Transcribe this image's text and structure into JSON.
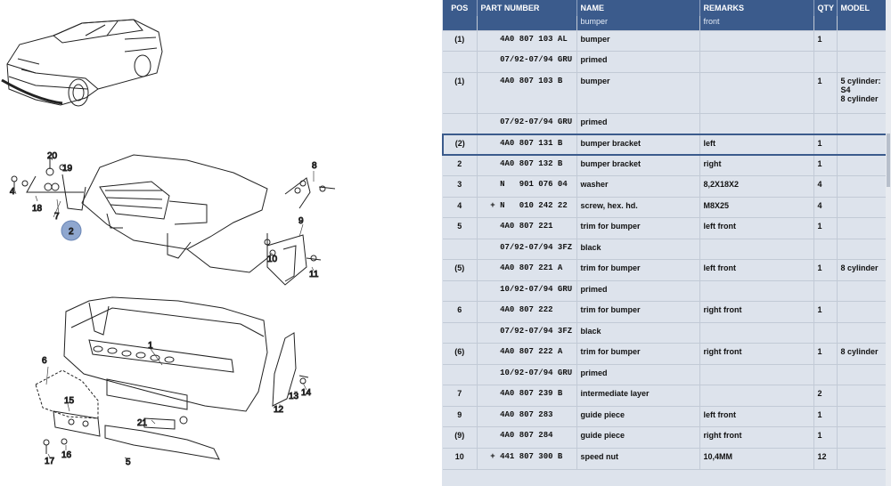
{
  "diagram": {
    "callouts": [
      "1",
      "2",
      "4",
      "5",
      "6",
      "7",
      "8",
      "9",
      "10",
      "11",
      "12",
      "13",
      "14",
      "15",
      "16",
      "17",
      "18",
      "19",
      "20",
      "21"
    ]
  },
  "table": {
    "columns": [
      "POS",
      "PART NUMBER",
      "NAME",
      "REMARKS",
      "QTY",
      "MODEL"
    ],
    "subheader": {
      "pos": "",
      "part": "",
      "name": "bumper",
      "remarks": "front",
      "qty": "",
      "model": ""
    },
    "rows": [
      {
        "pos": "(1)",
        "part": "    4A0 807 103 AL",
        "name": "bumper",
        "remarks": "",
        "qty": "1",
        "model": "",
        "h": 23
      },
      {
        "pos": "",
        "part": "    07/92-07/94 GRU",
        "name": "primed",
        "remarks": "",
        "qty": "",
        "model": "",
        "h": 24
      },
      {
        "pos": "(1)",
        "part": "    4A0 807 103 B",
        "name": "bumper",
        "remarks": "",
        "qty": "1",
        "model": "5 cylinder:\nS4\n8 cylinder",
        "h": 46
      },
      {
        "pos": "",
        "part": "    07/92-07/94 GRU",
        "name": "primed",
        "remarks": "",
        "qty": "",
        "model": "",
        "h": 24
      },
      {
        "pos": "(2)",
        "part": "    4A0 807 131 B",
        "name": "bumper bracket",
        "remarks": "left",
        "qty": "1",
        "model": "",
        "h": 23,
        "selected": true
      },
      {
        "pos": "2",
        "part": "    4A0 807 132 B",
        "name": "bumper bracket",
        "remarks": "right",
        "qty": "1",
        "model": "",
        "h": 23
      },
      {
        "pos": "3",
        "part": "    N   901 076 04",
        "name": "washer",
        "remarks": "8,2X18X2",
        "qty": "4",
        "model": "",
        "h": 24
      },
      {
        "pos": "4",
        "part": "  + N   010 242 22",
        "name": "screw, hex. hd.",
        "remarks": "M8X25",
        "qty": "4",
        "model": "",
        "h": 23
      },
      {
        "pos": "5",
        "part": "    4A0 807 221",
        "name": "trim for bumper",
        "remarks": "left front",
        "qty": "1",
        "model": "",
        "h": 24
      },
      {
        "pos": "",
        "part": "    07/92-07/94 3FZ",
        "name": "black",
        "remarks": "",
        "qty": "",
        "model": "",
        "h": 23
      },
      {
        "pos": "(5)",
        "part": "    4A0 807 221 A",
        "name": "trim for bumper",
        "remarks": "left front",
        "qty": "1",
        "model": "8 cylinder",
        "h": 24
      },
      {
        "pos": "",
        "part": "    10/92-07/94 GRU",
        "name": "primed",
        "remarks": "",
        "qty": "",
        "model": "",
        "h": 23
      },
      {
        "pos": "6",
        "part": "    4A0 807 222",
        "name": "trim for bumper",
        "remarks": "right front",
        "qty": "1",
        "model": "",
        "h": 24
      },
      {
        "pos": "",
        "part": "    07/92-07/94 3FZ",
        "name": "black",
        "remarks": "",
        "qty": "",
        "model": "",
        "h": 23
      },
      {
        "pos": "(6)",
        "part": "    4A0 807 222 A",
        "name": "trim for bumper",
        "remarks": "right front",
        "qty": "1",
        "model": "8 cylinder",
        "h": 24
      },
      {
        "pos": "",
        "part": "    10/92-07/94 GRU",
        "name": "primed",
        "remarks": "",
        "qty": "",
        "model": "",
        "h": 23
      },
      {
        "pos": "7",
        "part": "    4A0 807 239 B",
        "name": "intermediate layer",
        "remarks": "",
        "qty": "2",
        "model": "",
        "h": 24
      },
      {
        "pos": "9",
        "part": "    4A0 807 283",
        "name": "guide piece",
        "remarks": "left front",
        "qty": "1",
        "model": "",
        "h": 23
      },
      {
        "pos": "(9)",
        "part": "    4A0 807 284",
        "name": "guide piece",
        "remarks": "right front",
        "qty": "1",
        "model": "",
        "h": 24
      },
      {
        "pos": "10",
        "part": "  + 441 807 300 B",
        "name": "speed nut",
        "remarks": "10,4MM",
        "qty": "12",
        "model": "",
        "h": 24
      }
    ]
  }
}
